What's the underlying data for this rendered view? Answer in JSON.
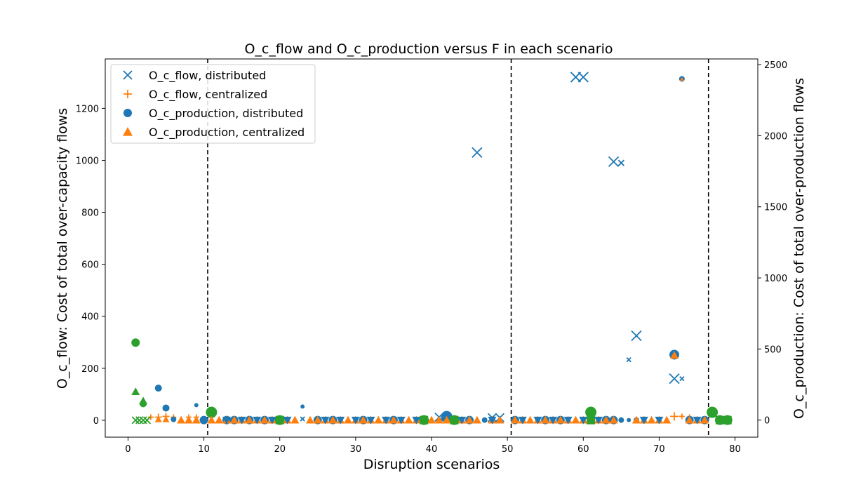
{
  "chart_data": {
    "type": "scatter",
    "title": "O_c_flow and O_c_production versus F in each scenario",
    "xlabel": "Disruption scenarios",
    "ylabel_left": "O_c_flow: Cost of total over-capacity flows",
    "ylabel_right": "O_c_production: Cost of total over-production flows",
    "xlim": [
      -3,
      83
    ],
    "ylim_left": [
      -65,
      1390
    ],
    "ylim_right": [
      -120,
      2540
    ],
    "xticks": [
      0,
      10,
      20,
      30,
      40,
      50,
      60,
      70,
      80
    ],
    "yticks_left": [
      0,
      200,
      400,
      600,
      800,
      1000,
      1200
    ],
    "yticks_right": [
      0,
      500,
      1000,
      1500,
      2000,
      2500
    ],
    "vlines": [
      10.5,
      50.5,
      76.5
    ],
    "legend_position": "upper-left",
    "colors": {
      "blue": "#1f77b4",
      "orange": "#ff7f0e",
      "green": "#2ca02c"
    },
    "legend": [
      {
        "label": "O_c_flow, distributed",
        "marker": "x",
        "color": "#1f77b4"
      },
      {
        "label": "O_c_flow, centralized",
        "marker": "+",
        "color": "#ff7f0e"
      },
      {
        "label": "O_c_production, distributed",
        "marker": "o",
        "color": "#1f77b4"
      },
      {
        "label": "O_c_production, centralized",
        "marker": "^",
        "color": "#ff7f0e"
      }
    ],
    "series": [
      {
        "name": "O_c_flow, distributed",
        "axis": "left",
        "marker": "x",
        "points": [
          {
            "x": 46,
            "y": 1030,
            "s": 7
          },
          {
            "x": 59,
            "y": 1320,
            "s": 7
          },
          {
            "x": 60,
            "y": 1320,
            "s": 7
          },
          {
            "x": 64,
            "y": 995,
            "s": 7
          },
          {
            "x": 65,
            "y": 990,
            "s": 4
          },
          {
            "x": 66,
            "y": 233,
            "s": 3
          },
          {
            "x": 67,
            "y": 325,
            "s": 7
          },
          {
            "x": 72,
            "y": 160,
            "s": 7
          },
          {
            "x": 73,
            "y": 160,
            "s": 3
          },
          {
            "x": 23,
            "y": 5,
            "s": 3
          },
          {
            "x": 41,
            "y": 12,
            "s": 6
          },
          {
            "x": 48,
            "y": 10,
            "s": 6
          },
          {
            "x": 49,
            "y": 10,
            "s": 6
          },
          {
            "x": 51,
            "y": 5,
            "s": 3
          }
        ]
      },
      {
        "name": "O_c_flow, centralized",
        "axis": "left",
        "marker": "+",
        "points": [
          {
            "x": 3,
            "y": 12,
            "s": 4
          },
          {
            "x": 4,
            "y": 12,
            "s": 5
          },
          {
            "x": 5,
            "y": 15,
            "s": 5
          },
          {
            "x": 6,
            "y": 12,
            "s": 4
          },
          {
            "x": 8,
            "y": 12,
            "s": 4
          },
          {
            "x": 9,
            "y": 12,
            "s": 4
          },
          {
            "x": 72,
            "y": 15,
            "s": 6
          },
          {
            "x": 73,
            "y": 15,
            "s": 4
          },
          {
            "x": 74,
            "y": 12,
            "s": 4
          }
        ]
      },
      {
        "name": "",
        "axis": "left",
        "marker": "x",
        "color": "#2ca02c",
        "points": [
          {
            "x": 1,
            "y": 0,
            "s": 5
          },
          {
            "x": 1.5,
            "y": 0,
            "s": 5
          },
          {
            "x": 2,
            "y": 0,
            "s": 5
          },
          {
            "x": 2.5,
            "y": 0,
            "s": 5
          }
        ]
      },
      {
        "name": "O_c_production, distributed",
        "axis": "right",
        "marker": "o",
        "points": [
          {
            "x": 4,
            "y": 225,
            "s": 5
          },
          {
            "x": 5,
            "y": 85,
            "s": 5
          },
          {
            "x": 6,
            "y": 5,
            "s": 4
          },
          {
            "x": 9,
            "y": 105,
            "s": 3
          },
          {
            "x": 23,
            "y": 95,
            "s": 3
          },
          {
            "x": 42,
            "y": 25,
            "s": 8
          },
          {
            "x": 65,
            "y": 0,
            "s": 4
          },
          {
            "x": 66,
            "y": 0,
            "s": 3
          },
          {
            "x": 67,
            "y": 0,
            "s": 4
          },
          {
            "x": 72,
            "y": 460,
            "s": 7
          },
          {
            "x": 73,
            "y": 2400,
            "s": 4
          }
        ]
      },
      {
        "name": "O_c_production, centralized",
        "axis": "right",
        "marker": "^",
        "points": [
          {
            "x": 4,
            "y": 5,
            "s": 5
          },
          {
            "x": 5,
            "y": 5,
            "s": 5
          },
          {
            "x": 72,
            "y": 455,
            "s": 6
          },
          {
            "x": 73,
            "y": 2398,
            "s": 3
          }
        ]
      },
      {
        "name": "",
        "axis": "right",
        "marker": "o",
        "color": "#2ca02c",
        "points": [
          {
            "x": 1,
            "y": 545,
            "s": 6
          },
          {
            "x": 2,
            "y": 115,
            "s": 5
          },
          {
            "x": 11,
            "y": 55,
            "s": 8
          },
          {
            "x": 20,
            "y": 0,
            "s": 7
          },
          {
            "x": 39,
            "y": 0,
            "s": 7
          },
          {
            "x": 43,
            "y": 0,
            "s": 7
          },
          {
            "x": 61,
            "y": 55,
            "s": 8
          },
          {
            "x": 77,
            "y": 55,
            "s": 8
          },
          {
            "x": 78,
            "y": 0,
            "s": 7
          },
          {
            "x": 79,
            "y": 0,
            "s": 7
          }
        ]
      },
      {
        "name": "",
        "axis": "right",
        "marker": "^",
        "color": "#2ca02c",
        "points": [
          {
            "x": 1,
            "y": 200,
            "s": 6
          },
          {
            "x": 2,
            "y": 135,
            "s": 6
          }
        ]
      },
      {
        "name": "",
        "axis": "right",
        "marker": "o",
        "color": "#1f77b4",
        "points": [
          {
            "x": 10,
            "y": 0,
            "s": 6
          },
          {
            "x": 13,
            "y": 0,
            "s": 6
          },
          {
            "x": 14,
            "y": 0,
            "s": 6
          },
          {
            "x": 16,
            "y": 0,
            "s": 6
          },
          {
            "x": 18,
            "y": 0,
            "s": 6
          },
          {
            "x": 25,
            "y": 0,
            "s": 6
          },
          {
            "x": 27,
            "y": 0,
            "s": 6
          },
          {
            "x": 31,
            "y": 0,
            "s": 6
          },
          {
            "x": 35,
            "y": 0,
            "s": 6
          },
          {
            "x": 45,
            "y": 0,
            "s": 6
          },
          {
            "x": 47,
            "y": 0,
            "s": 4
          },
          {
            "x": 51,
            "y": 0,
            "s": 6
          },
          {
            "x": 55,
            "y": 0,
            "s": 6
          },
          {
            "x": 57,
            "y": 0,
            "s": 6
          },
          {
            "x": 63,
            "y": 0,
            "s": 6
          },
          {
            "x": 64,
            "y": 0,
            "s": 6
          },
          {
            "x": 74,
            "y": 0,
            "s": 6
          },
          {
            "x": 76,
            "y": 0,
            "s": 6
          }
        ]
      },
      {
        "name": "",
        "axis": "right",
        "marker": "^",
        "color": "#ff7f0e",
        "points": [
          {
            "x": 7,
            "y": 0,
            "s": 6
          },
          {
            "x": 8,
            "y": 0,
            "s": 6
          },
          {
            "x": 9,
            "y": 0,
            "s": 6
          },
          {
            "x": 11,
            "y": 0,
            "s": 6
          },
          {
            "x": 12,
            "y": 0,
            "s": 6
          },
          {
            "x": 13,
            "y": 0,
            "s": 6
          },
          {
            "x": 14,
            "y": 0,
            "s": 6
          },
          {
            "x": 15,
            "y": 0,
            "s": 6
          },
          {
            "x": 16,
            "y": 0,
            "s": 6
          },
          {
            "x": 17,
            "y": 0,
            "s": 6
          },
          {
            "x": 18,
            "y": 0,
            "s": 6
          },
          {
            "x": 19,
            "y": 0,
            "s": 6
          },
          {
            "x": 21,
            "y": 0,
            "s": 6
          },
          {
            "x": 22,
            "y": 0,
            "s": 6
          },
          {
            "x": 24,
            "y": 0,
            "s": 6
          },
          {
            "x": 25,
            "y": 0,
            "s": 6
          },
          {
            "x": 26,
            "y": 0,
            "s": 6
          },
          {
            "x": 27,
            "y": 0,
            "s": 6
          },
          {
            "x": 28,
            "y": 0,
            "s": 6
          },
          {
            "x": 29,
            "y": 0,
            "s": 6
          },
          {
            "x": 30,
            "y": 0,
            "s": 6
          },
          {
            "x": 31,
            "y": 0,
            "s": 6
          },
          {
            "x": 32,
            "y": 0,
            "s": 6
          },
          {
            "x": 33,
            "y": 0,
            "s": 6
          },
          {
            "x": 34,
            "y": 0,
            "s": 6
          },
          {
            "x": 35,
            "y": 0,
            "s": 6
          },
          {
            "x": 36,
            "y": 0,
            "s": 6
          },
          {
            "x": 37,
            "y": 0,
            "s": 6
          },
          {
            "x": 38,
            "y": 0,
            "s": 6
          },
          {
            "x": 40,
            "y": 0,
            "s": 6
          },
          {
            "x": 41,
            "y": 0,
            "s": 6
          },
          {
            "x": 42,
            "y": 0,
            "s": 6
          },
          {
            "x": 44,
            "y": 0,
            "s": 6
          },
          {
            "x": 45,
            "y": 0,
            "s": 6
          },
          {
            "x": 46,
            "y": 0,
            "s": 6
          },
          {
            "x": 48,
            "y": 0,
            "s": 6
          },
          {
            "x": 49,
            "y": 0,
            "s": 6
          },
          {
            "x": 51,
            "y": 0,
            "s": 6
          },
          {
            "x": 52,
            "y": 0,
            "s": 6
          },
          {
            "x": 53,
            "y": 0,
            "s": 6
          },
          {
            "x": 54,
            "y": 0,
            "s": 6
          },
          {
            "x": 55,
            "y": 0,
            "s": 6
          },
          {
            "x": 56,
            "y": 0,
            "s": 6
          },
          {
            "x": 57,
            "y": 0,
            "s": 6
          },
          {
            "x": 58,
            "y": 0,
            "s": 6
          },
          {
            "x": 59,
            "y": 0,
            "s": 6
          },
          {
            "x": 60,
            "y": 0,
            "s": 6
          },
          {
            "x": 62,
            "y": 0,
            "s": 6
          },
          {
            "x": 63,
            "y": 0,
            "s": 6
          },
          {
            "x": 64,
            "y": 0,
            "s": 6
          },
          {
            "x": 67,
            "y": 0,
            "s": 6
          },
          {
            "x": 68,
            "y": 0,
            "s": 6
          },
          {
            "x": 69,
            "y": 0,
            "s": 6
          },
          {
            "x": 70,
            "y": 0,
            "s": 6
          },
          {
            "x": 71,
            "y": 0,
            "s": 6
          },
          {
            "x": 74,
            "y": 0,
            "s": 6
          },
          {
            "x": 75,
            "y": 0,
            "s": 6
          },
          {
            "x": 76,
            "y": 0,
            "s": 6
          }
        ]
      },
      {
        "name": "",
        "axis": "right",
        "marker": "v",
        "color": "#1f77b4",
        "points": [
          {
            "x": 13,
            "y": 0,
            "s": 6
          },
          {
            "x": 15,
            "y": 0,
            "s": 6
          },
          {
            "x": 17,
            "y": 0,
            "s": 6
          },
          {
            "x": 19,
            "y": 0,
            "s": 6
          },
          {
            "x": 21,
            "y": 0,
            "s": 6
          },
          {
            "x": 26,
            "y": 0,
            "s": 6
          },
          {
            "x": 28,
            "y": 0,
            "s": 6
          },
          {
            "x": 30,
            "y": 0,
            "s": 6
          },
          {
            "x": 32,
            "y": 0,
            "s": 6
          },
          {
            "x": 34,
            "y": 0,
            "s": 6
          },
          {
            "x": 36,
            "y": 0,
            "s": 6
          },
          {
            "x": 38,
            "y": 0,
            "s": 6
          },
          {
            "x": 44,
            "y": 0,
            "s": 6
          },
          {
            "x": 48,
            "y": 0,
            "s": 6
          },
          {
            "x": 52,
            "y": 0,
            "s": 6
          },
          {
            "x": 54,
            "y": 0,
            "s": 6
          },
          {
            "x": 56,
            "y": 0,
            "s": 6
          },
          {
            "x": 58,
            "y": 0,
            "s": 6
          },
          {
            "x": 60,
            "y": 0,
            "s": 6
          },
          {
            "x": 62,
            "y": 0,
            "s": 6
          },
          {
            "x": 68,
            "y": 0,
            "s": 6
          },
          {
            "x": 70,
            "y": 0,
            "s": 6
          },
          {
            "x": 75,
            "y": 0,
            "s": 6
          }
        ]
      },
      {
        "name": "",
        "axis": "right",
        "marker": "s",
        "color": "#2ca02c",
        "points": [
          {
            "x": 20,
            "y": 0,
            "s": 6
          },
          {
            "x": 39,
            "y": 0,
            "s": 6
          },
          {
            "x": 43,
            "y": 0,
            "s": 6
          },
          {
            "x": 61,
            "y": 0,
            "s": 6
          },
          {
            "x": 78,
            "y": 0,
            "s": 6
          },
          {
            "x": 79,
            "y": 0,
            "s": 6
          }
        ]
      }
    ]
  }
}
